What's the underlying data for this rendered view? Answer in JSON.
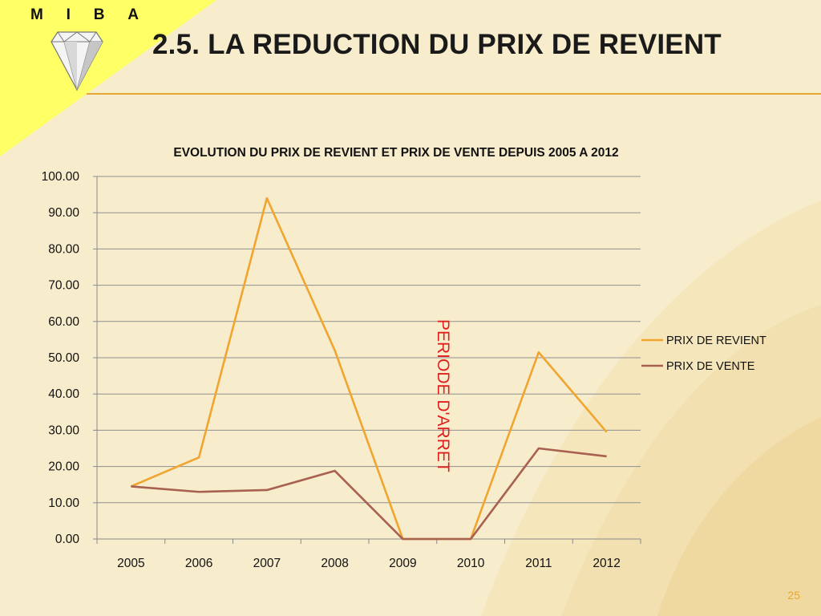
{
  "logo": {
    "letters": [
      "M",
      "I",
      "B",
      "A"
    ]
  },
  "slide": {
    "title": "2.5. LA REDUCTION DU PRIX DE REVIENT",
    "page_number": "25"
  },
  "annotation": {
    "text": "PERIODE D'ARRET",
    "color": "#e0201e"
  },
  "colors": {
    "accent": "#e8a732",
    "corner": "#ffff66",
    "series_1": "#f0a530",
    "series_2": "#a86050"
  },
  "chart_data": {
    "type": "line",
    "title": "EVOLUTION DU PRIX DE REVIENT ET PRIX DE VENTE DEPUIS 2005 A 2012",
    "categories": [
      "2005",
      "2006",
      "2007",
      "2008",
      "2009",
      "2010",
      "2011",
      "2012"
    ],
    "series": [
      {
        "name": "PRIX DE REVIENT",
        "values": [
          14.5,
          22.5,
          94.0,
          52.0,
          0.0,
          0.0,
          51.5,
          29.5
        ]
      },
      {
        "name": "PRIX DE VENTE",
        "values": [
          14.5,
          13.0,
          13.5,
          18.8,
          0.0,
          0.0,
          25.0,
          22.8
        ]
      }
    ],
    "ylim": [
      0,
      100
    ],
    "yticks": [
      "0.00",
      "10.00",
      "20.00",
      "30.00",
      "40.00",
      "50.00",
      "60.00",
      "70.00",
      "80.00",
      "90.00",
      "100.00"
    ],
    "grid": true,
    "legend": "right"
  }
}
